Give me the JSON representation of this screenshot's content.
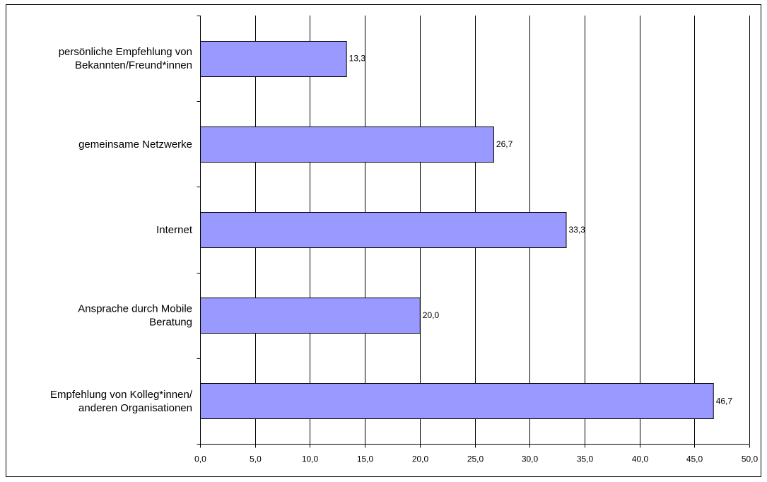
{
  "chart_data": {
    "type": "bar",
    "orientation": "horizontal",
    "categories": [
      [
        "persönliche Empfehlung von",
        "Bekannten/Freund*innen"
      ],
      [
        "gemeinsame Netzwerke"
      ],
      [
        "Internet"
      ],
      [
        "Ansprache durch Mobile",
        "Beratung"
      ],
      [
        "Empfehlung von Kolleg*innen/",
        "anderen Organisationen"
      ]
    ],
    "values": [
      13.3,
      26.7,
      33.3,
      20.0,
      46.7
    ],
    "value_labels": [
      "13,3",
      "26,7",
      "33,3",
      "20,0",
      "46,7"
    ],
    "xlim": [
      0,
      50
    ],
    "x_ticks": [
      0,
      5,
      10,
      15,
      20,
      25,
      30,
      35,
      40,
      45,
      50
    ],
    "x_tick_labels": [
      "0,0",
      "5,0",
      "10,0",
      "15,0",
      "20,0",
      "25,0",
      "30,0",
      "35,0",
      "40,0",
      "45,0",
      "50,0"
    ],
    "grid": "vertical",
    "legend": "none",
    "colors": {
      "bar_fill": "#9999ff",
      "bar_stroke": "#000000",
      "grid": "#000000",
      "frame": "#000000"
    }
  }
}
